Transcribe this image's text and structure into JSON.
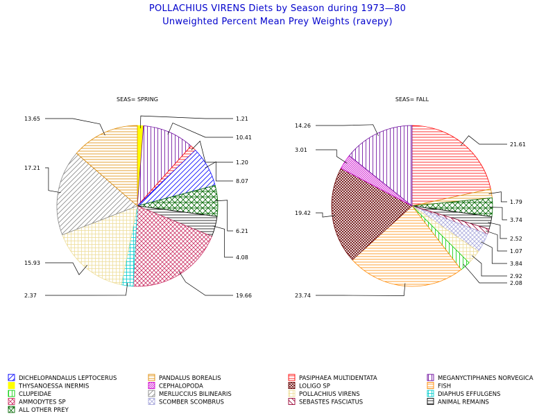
{
  "titles": {
    "line1": "POLLACHIUS VIRENS Diets by Season during 1973—80",
    "line2": "Unweighted Percent Mean Prey Weights (ravepy)"
  },
  "chart_data": [
    {
      "type": "pie",
      "title": "SEAS= SPRING",
      "slices": [
        {
          "category": "THYSANOESSA INERMIS",
          "value": 1.21
        },
        {
          "category": "MEGANYCTIPHANES NORVEGICA",
          "value": 10.41
        },
        {
          "category": "PASIPHAEA MULTIDENTATA",
          "value": 1.2
        },
        {
          "category": "DICHELOPANDALUS LEPTOCERUS",
          "value": 8.07
        },
        {
          "category": "ALL OTHER PREY",
          "value": 6.21
        },
        {
          "category": "ANIMAL REMAINS",
          "value": 4.08
        },
        {
          "category": "AMMODYTES SP",
          "value": 19.66
        },
        {
          "category": "DIAPHUS EFFULGENS",
          "value": 2.37
        },
        {
          "category": "POLLACHIUS VIRENS",
          "value": 15.93
        },
        {
          "category": "MERLUCCIUS BILINEARIS",
          "value": 17.21
        },
        {
          "category": "PANDALUS BOREALIS",
          "value": 13.65
        }
      ],
      "labels": [
        "1.21",
        "10.41",
        "1.20",
        "8.07",
        "6.21",
        "4.08",
        "19.66",
        "2.37",
        "15.93",
        "17.21",
        "13.65"
      ]
    },
    {
      "type": "pie",
      "title": "SEAS= FALL",
      "slices": [
        {
          "category": "PASIPHAEA MULTIDENTATA",
          "value": 21.61
        },
        {
          "category": "PANDALUS BOREALIS",
          "value": 1.79
        },
        {
          "category": "ALL OTHER PREY",
          "value": 3.74
        },
        {
          "category": "ANIMAL REMAINS",
          "value": 2.52
        },
        {
          "category": "SEBASTES FASCIATUS",
          "value": 1.07
        },
        {
          "category": "SCOMBER SCOMBRUS",
          "value": 3.84
        },
        {
          "category": "POLLACHIUS VIRENS",
          "value": 2.92
        },
        {
          "category": "CLUPEIDAE",
          "value": 2.08
        },
        {
          "category": "FISH",
          "value": 23.74
        },
        {
          "category": "LOLIGO SP",
          "value": 19.42
        },
        {
          "category": "CEPHALOPODA",
          "value": 3.01
        },
        {
          "category": "MEGANYCTIPHANES NORVEGICA",
          "value": 14.26
        }
      ],
      "labels": [
        "21.61",
        "1.79",
        "3.74",
        "2.52",
        "1.07",
        "3.84",
        "2.92",
        "2.08",
        "23.74",
        "19.42",
        "3.01",
        "14.26"
      ]
    }
  ],
  "categories": {
    "DICHELOPANDALUS LEPTOCERUS": {
      "color": "#0000ff",
      "pattern": "diag-up"
    },
    "THYSANOESSA INERMIS": {
      "color": "#ffff00",
      "pattern": "solid"
    },
    "CLUPEIDAE": {
      "color": "#00cc00",
      "pattern": "vertical"
    },
    "AMMODYTES SP": {
      "color": "#cc3366",
      "pattern": "crosshatch-diag"
    },
    "ALL OTHER PREY": {
      "color": "#006600",
      "pattern": "cross-grid-diag"
    },
    "PANDALUS BOREALIS": {
      "color": "#dd8800",
      "pattern": "horizontal"
    },
    "CEPHALOPODA": {
      "color": "#cc00cc",
      "pattern": "diag-up-dense"
    },
    "MERLUCCIUS BILINEARIS": {
      "color": "#888888",
      "pattern": "diag-up"
    },
    "SCOMBER SCOMBRUS": {
      "color": "#aaaadd",
      "pattern": "crosshatch-diag"
    },
    "PASIPHAEA MULTIDENTATA": {
      "color": "#ff0000",
      "pattern": "horizontal"
    },
    "LOLIGO SP": {
      "color": "#660000",
      "pattern": "crosshatch-dense"
    },
    "POLLACHIUS VIRENS": {
      "color": "#eedd99",
      "pattern": "grid"
    },
    "SEBASTES FASCIATUS": {
      "color": "#990033",
      "pattern": "diag-down"
    },
    "MEGANYCTIPHANES NORVEGICA": {
      "color": "#660099",
      "pattern": "vertical"
    },
    "FISH": {
      "color": "#ff8800",
      "pattern": "horizontal"
    },
    "DIAPHUS EFFULGENS": {
      "color": "#00cccc",
      "pattern": "grid"
    },
    "ANIMAL REMAINS": {
      "color": "#000000",
      "pattern": "horizontal"
    }
  },
  "legend": [
    "DICHELOPANDALUS LEPTOCERUS",
    "PANDALUS BOREALIS",
    "PASIPHAEA MULTIDENTATA",
    "MEGANYCTIPHANES NORVEGICA",
    "THYSANOESSA INERMIS",
    "CEPHALOPODA",
    "LOLIGO SP",
    "FISH",
    "CLUPEIDAE",
    "MERLUCCIUS BILINEARIS",
    "POLLACHIUS VIRENS",
    "DIAPHUS EFFULGENS",
    "AMMODYTES SP",
    "SCOMBER SCOMBRUS",
    "SEBASTES FASCIATUS",
    "ANIMAL REMAINS",
    "ALL OTHER PREY"
  ]
}
